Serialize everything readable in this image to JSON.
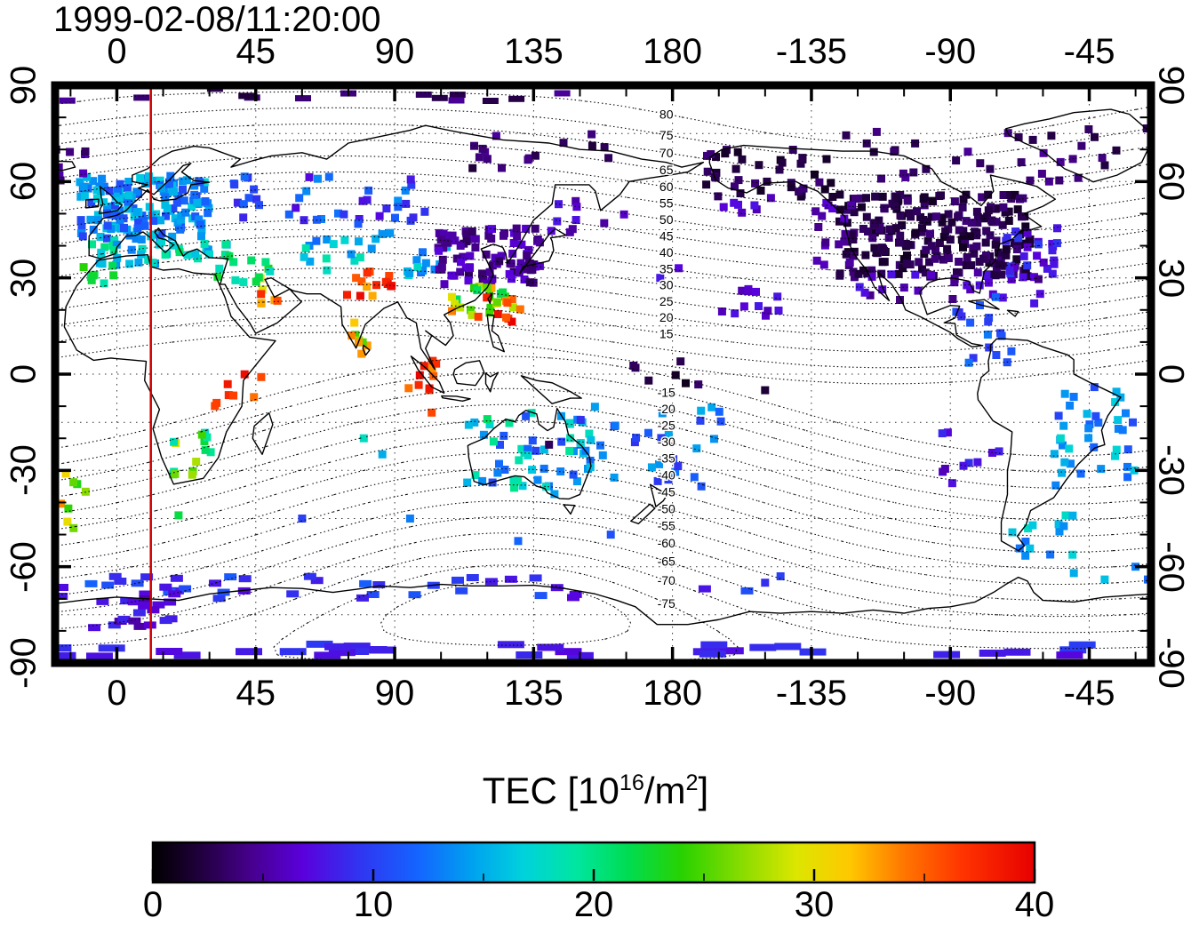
{
  "chart_data": {
    "type": "heatmap",
    "title": "1999-02-08/11:20:00",
    "projection": {
      "lon_range": [
        -20,
        335
      ],
      "lat_range": [
        -90,
        90
      ]
    },
    "axes": {
      "lon_ticks": [
        0,
        45,
        90,
        135,
        180,
        -135,
        -90,
        -45
      ],
      "lat_ticks": [
        90,
        60,
        30,
        0,
        -30,
        -60,
        -90
      ],
      "lon_minor_step": 15,
      "lat_minor_step": 10
    },
    "graticule": {
      "lon_step": 45,
      "lat_step": 15
    },
    "colorbar": {
      "label_prefix": "TEC  [10",
      "label_sup1": "16",
      "label_mid": "/m",
      "label_sup2": "2",
      "label_suffix": "]",
      "ticks": [
        0,
        10,
        20,
        30,
        40
      ],
      "minor_step": 5,
      "range": [
        0,
        40
      ],
      "stops": [
        [
          0,
          "#000000"
        ],
        [
          0.05,
          "#1e0038"
        ],
        [
          0.11,
          "#46008c"
        ],
        [
          0.17,
          "#5a00dc"
        ],
        [
          0.23,
          "#3232f0"
        ],
        [
          0.3,
          "#1464ff"
        ],
        [
          0.36,
          "#00a0f0"
        ],
        [
          0.42,
          "#00d2dc"
        ],
        [
          0.48,
          "#00e6a0"
        ],
        [
          0.54,
          "#00dc50"
        ],
        [
          0.6,
          "#28d200"
        ],
        [
          0.67,
          "#8cdc00"
        ],
        [
          0.73,
          "#dce600"
        ],
        [
          0.79,
          "#ffc800"
        ],
        [
          0.85,
          "#ff7800"
        ],
        [
          0.92,
          "#ff3200"
        ],
        [
          1,
          "#e60000"
        ]
      ]
    },
    "geomagnetic_contours": {
      "levels_north": [
        5,
        10,
        15,
        20,
        25,
        30,
        35,
        40,
        45,
        50,
        55,
        60,
        65,
        70,
        75,
        80
      ],
      "levels_south": [
        -10,
        -15,
        -20,
        -25,
        -30,
        -35,
        -40,
        -45,
        -50,
        -55,
        -60,
        -65,
        -70,
        -75,
        -80
      ],
      "labeled_north": [
        15,
        20,
        25,
        30,
        35,
        40,
        45,
        50,
        55,
        60,
        65,
        70,
        75,
        80
      ],
      "labeled_south": [
        -15,
        -20,
        -25,
        -30,
        -35,
        -40,
        -45,
        -50,
        -55,
        -60,
        -65,
        -70,
        -75
      ],
      "label_lon": 178,
      "pole_north": {
        "lat": 82,
        "lon": -110
      },
      "pole_south": {
        "lat": -74.5,
        "lon": 126
      }
    },
    "red_meridian": {
      "lon": 11,
      "color": "#cc0000"
    },
    "tec_points_seed": 7,
    "tec_clusters": [
      {
        "name": "arctic-row",
        "lon": [
          -18,
          150
        ],
        "lat": [
          85,
          89
        ],
        "n": 14,
        "tec": [
          2,
          5
        ],
        "w": 18,
        "h": 7
      },
      {
        "name": "europe-main",
        "lon": [
          -12,
          30
        ],
        "lat": [
          42,
          62
        ],
        "n": 150,
        "tec": [
          10,
          17
        ]
      },
      {
        "name": "europe-south",
        "lon": [
          -10,
          36
        ],
        "lat": [
          34,
          42
        ],
        "n": 40,
        "tec": [
          13,
          21
        ]
      },
      {
        "name": "nw-africa",
        "lon": [
          -14,
          0
        ],
        "lat": [
          28,
          35
        ],
        "n": 8,
        "tec": [
          18,
          26
        ]
      },
      {
        "name": "north-atlantic",
        "lon": [
          -20,
          -6
        ],
        "lat": [
          60,
          70
        ],
        "n": 8,
        "tec": [
          3,
          6
        ]
      },
      {
        "name": "russia",
        "lon": [
          36,
          100
        ],
        "lat": [
          46,
          62
        ],
        "n": 40,
        "tec": [
          7,
          14
        ]
      },
      {
        "name": "central-asia",
        "lon": [
          60,
          90
        ],
        "lat": [
          32,
          44
        ],
        "n": 18,
        "tec": [
          12,
          19
        ]
      },
      {
        "name": "west-china",
        "lon": [
          92,
          110
        ],
        "lat": [
          30,
          40
        ],
        "n": 12,
        "tec": [
          12,
          18
        ]
      },
      {
        "name": "ne-siberia",
        "lon": [
          115,
          160
        ],
        "lat": [
          64,
          76
        ],
        "n": 16,
        "tec": [
          2,
          5
        ]
      },
      {
        "name": "kuril",
        "lon": [
          138,
          165
        ],
        "lat": [
          44,
          56
        ],
        "n": 10,
        "tec": [
          4,
          8
        ]
      },
      {
        "name": "east-asia",
        "lon": [
          104,
          138
        ],
        "lat": [
          28,
          46
        ],
        "n": 90,
        "tec": [
          3,
          7
        ]
      },
      {
        "name": "south-china",
        "lon": [
          108,
          130
        ],
        "lat": [
          18,
          28
        ],
        "n": 22,
        "tec": [
          20,
          34
        ]
      },
      {
        "name": "taiwan-red",
        "lon": [
          116,
          132
        ],
        "lat": [
          16,
          24
        ],
        "n": 10,
        "tec": [
          33,
          40
        ]
      },
      {
        "name": "north-india-red",
        "lon": [
          74,
          90
        ],
        "lat": [
          24,
          32
        ],
        "n": 14,
        "tec": [
          32,
          40
        ]
      },
      {
        "name": "south-india",
        "lon": [
          76,
          84
        ],
        "lat": [
          6,
          18
        ],
        "n": 8,
        "tec": [
          24,
          34
        ]
      },
      {
        "name": "sumatra-red",
        "lon": [
          94,
          104
        ],
        "lat": [
          -6,
          6
        ],
        "n": 10,
        "tec": [
          32,
          40
        ]
      },
      {
        "name": "arabia",
        "lon": [
          44,
          56
        ],
        "lat": [
          22,
          30
        ],
        "n": 7,
        "tec": [
          26,
          38
        ]
      },
      {
        "name": "levant",
        "lon": [
          32,
          50
        ],
        "lat": [
          28,
          37
        ],
        "n": 12,
        "tec": [
          15,
          24
        ]
      },
      {
        "name": "east-africa-red",
        "lon": [
          28,
          48
        ],
        "lat": [
          -10,
          2
        ],
        "n": 8,
        "tec": [
          33,
          40
        ]
      },
      {
        "name": "south-africa",
        "lon": [
          16,
          32
        ],
        "lat": [
          -32,
          -18
        ],
        "n": 14,
        "tec": [
          17,
          30
        ]
      },
      {
        "name": "south-atlantic",
        "lon": [
          -19,
          -8
        ],
        "lat": [
          -42,
          -30
        ],
        "n": 6,
        "tec": [
          22,
          34
        ]
      },
      {
        "name": "australia",
        "lon": [
          113,
          154
        ],
        "lat": [
          -38,
          -12
        ],
        "n": 55,
        "tec": [
          10,
          20
        ]
      },
      {
        "name": "sw-pacific",
        "lon": [
          150,
          196
        ],
        "lat": [
          -35,
          -8
        ],
        "n": 30,
        "tec": [
          9,
          16
        ]
      },
      {
        "name": "hawaii",
        "lon": [
          196,
          215
        ],
        "lat": [
          18,
          27
        ],
        "n": 12,
        "tec": [
          5,
          9
        ]
      },
      {
        "name": "pacific-equator",
        "lon": [
          158,
          200
        ],
        "lat": [
          -6,
          8
        ],
        "n": 6,
        "tec": [
          1,
          4
        ]
      },
      {
        "name": "north-america-core",
        "lon": [
          234,
          296
        ],
        "lat": [
          30,
          56
        ],
        "n": 230,
        "tec": [
          1,
          4
        ]
      },
      {
        "name": "na-west-fringe",
        "lon": [
          226,
          238
        ],
        "lat": [
          34,
          54
        ],
        "n": 16,
        "tec": [
          4,
          7
        ]
      },
      {
        "name": "na-south-fringe",
        "lon": [
          240,
          300
        ],
        "lat": [
          22,
          32
        ],
        "n": 28,
        "tec": [
          4,
          8
        ]
      },
      {
        "name": "na-east",
        "lon": [
          288,
          306
        ],
        "lat": [
          30,
          46
        ],
        "n": 26,
        "tec": [
          6,
          10
        ]
      },
      {
        "name": "caribbean",
        "lon": [
          270,
          285
        ],
        "lat": [
          16,
          24
        ],
        "n": 8,
        "tec": [
          8,
          12
        ]
      },
      {
        "name": "venezuela",
        "lon": [
          276,
          294
        ],
        "lat": [
          2,
          14
        ],
        "n": 9,
        "tec": [
          9,
          13
        ]
      },
      {
        "name": "alaska",
        "lon": [
          188,
          234
        ],
        "lat": [
          55,
          70
        ],
        "n": 40,
        "tec": [
          1,
          4
        ]
      },
      {
        "name": "aleutian",
        "lon": [
          190,
          214
        ],
        "lat": [
          50,
          55
        ],
        "n": 7,
        "tec": [
          5,
          8
        ]
      },
      {
        "name": "arctic-canada",
        "lon": [
          236,
          306
        ],
        "lat": [
          60,
          76
        ],
        "n": 26,
        "tec": [
          2,
          5
        ]
      },
      {
        "name": "greenland",
        "lon": [
          300,
          334
        ],
        "lat": [
          60,
          80
        ],
        "n": 10,
        "tec": [
          2,
          5
        ]
      },
      {
        "name": "brazil",
        "lon": [
          303,
          334
        ],
        "lat": [
          -35,
          -3
        ],
        "n": 38,
        "tec": [
          10,
          18
        ]
      },
      {
        "name": "chile-offshore",
        "lon": [
          264,
          286
        ],
        "lat": [
          -35,
          -18
        ],
        "n": 10,
        "tec": [
          5,
          9
        ]
      },
      {
        "name": "patagonia",
        "lon": [
          290,
          310
        ],
        "lat": [
          -58,
          -44
        ],
        "n": 14,
        "tec": [
          12,
          18
        ]
      },
      {
        "name": "antarctic-coast",
        "lon": [
          -20,
          205
        ],
        "lat": [
          -70,
          -63
        ],
        "n": 42,
        "tec": [
          7,
          12
        ],
        "w": 14,
        "h": 8
      },
      {
        "name": "weddell",
        "lon": [
          -8,
          18
        ],
        "lat": [
          -79,
          -70
        ],
        "n": 18,
        "tec": [
          5,
          9
        ],
        "w": 14,
        "h": 8
      },
      {
        "name": "antarctic-interior",
        "lon": [
          -20,
          335
        ],
        "lat": [
          -88,
          -84
        ],
        "n": 34,
        "tec": [
          7,
          10
        ],
        "w": 30,
        "h": 8
      }
    ],
    "tec_singles": [
      [
        102,
        -12,
        36
      ],
      [
        120,
        -14,
        21
      ],
      [
        140,
        -22,
        3
      ],
      [
        -16,
        -46,
        30
      ],
      [
        -14,
        -48,
        26
      ],
      [
        20,
        -44,
        22
      ],
      [
        60,
        -45,
        10
      ],
      [
        95,
        -45,
        13
      ],
      [
        130,
        -52,
        12
      ],
      [
        160,
        -50,
        11
      ],
      [
        210,
        -65,
        9
      ],
      [
        215,
        -63,
        10
      ],
      [
        330,
        -60,
        13
      ],
      [
        334,
        -64,
        12
      ],
      [
        310,
        -62,
        15
      ],
      [
        320,
        -64,
        16
      ],
      [
        336,
        59,
        8
      ],
      [
        210,
        -5,
        2
      ],
      [
        168,
        2,
        3
      ],
      [
        80,
        -20,
        18
      ],
      [
        86,
        -25,
        15
      ],
      [
        176,
        30,
        8
      ],
      [
        182,
        33,
        7
      ]
    ]
  }
}
